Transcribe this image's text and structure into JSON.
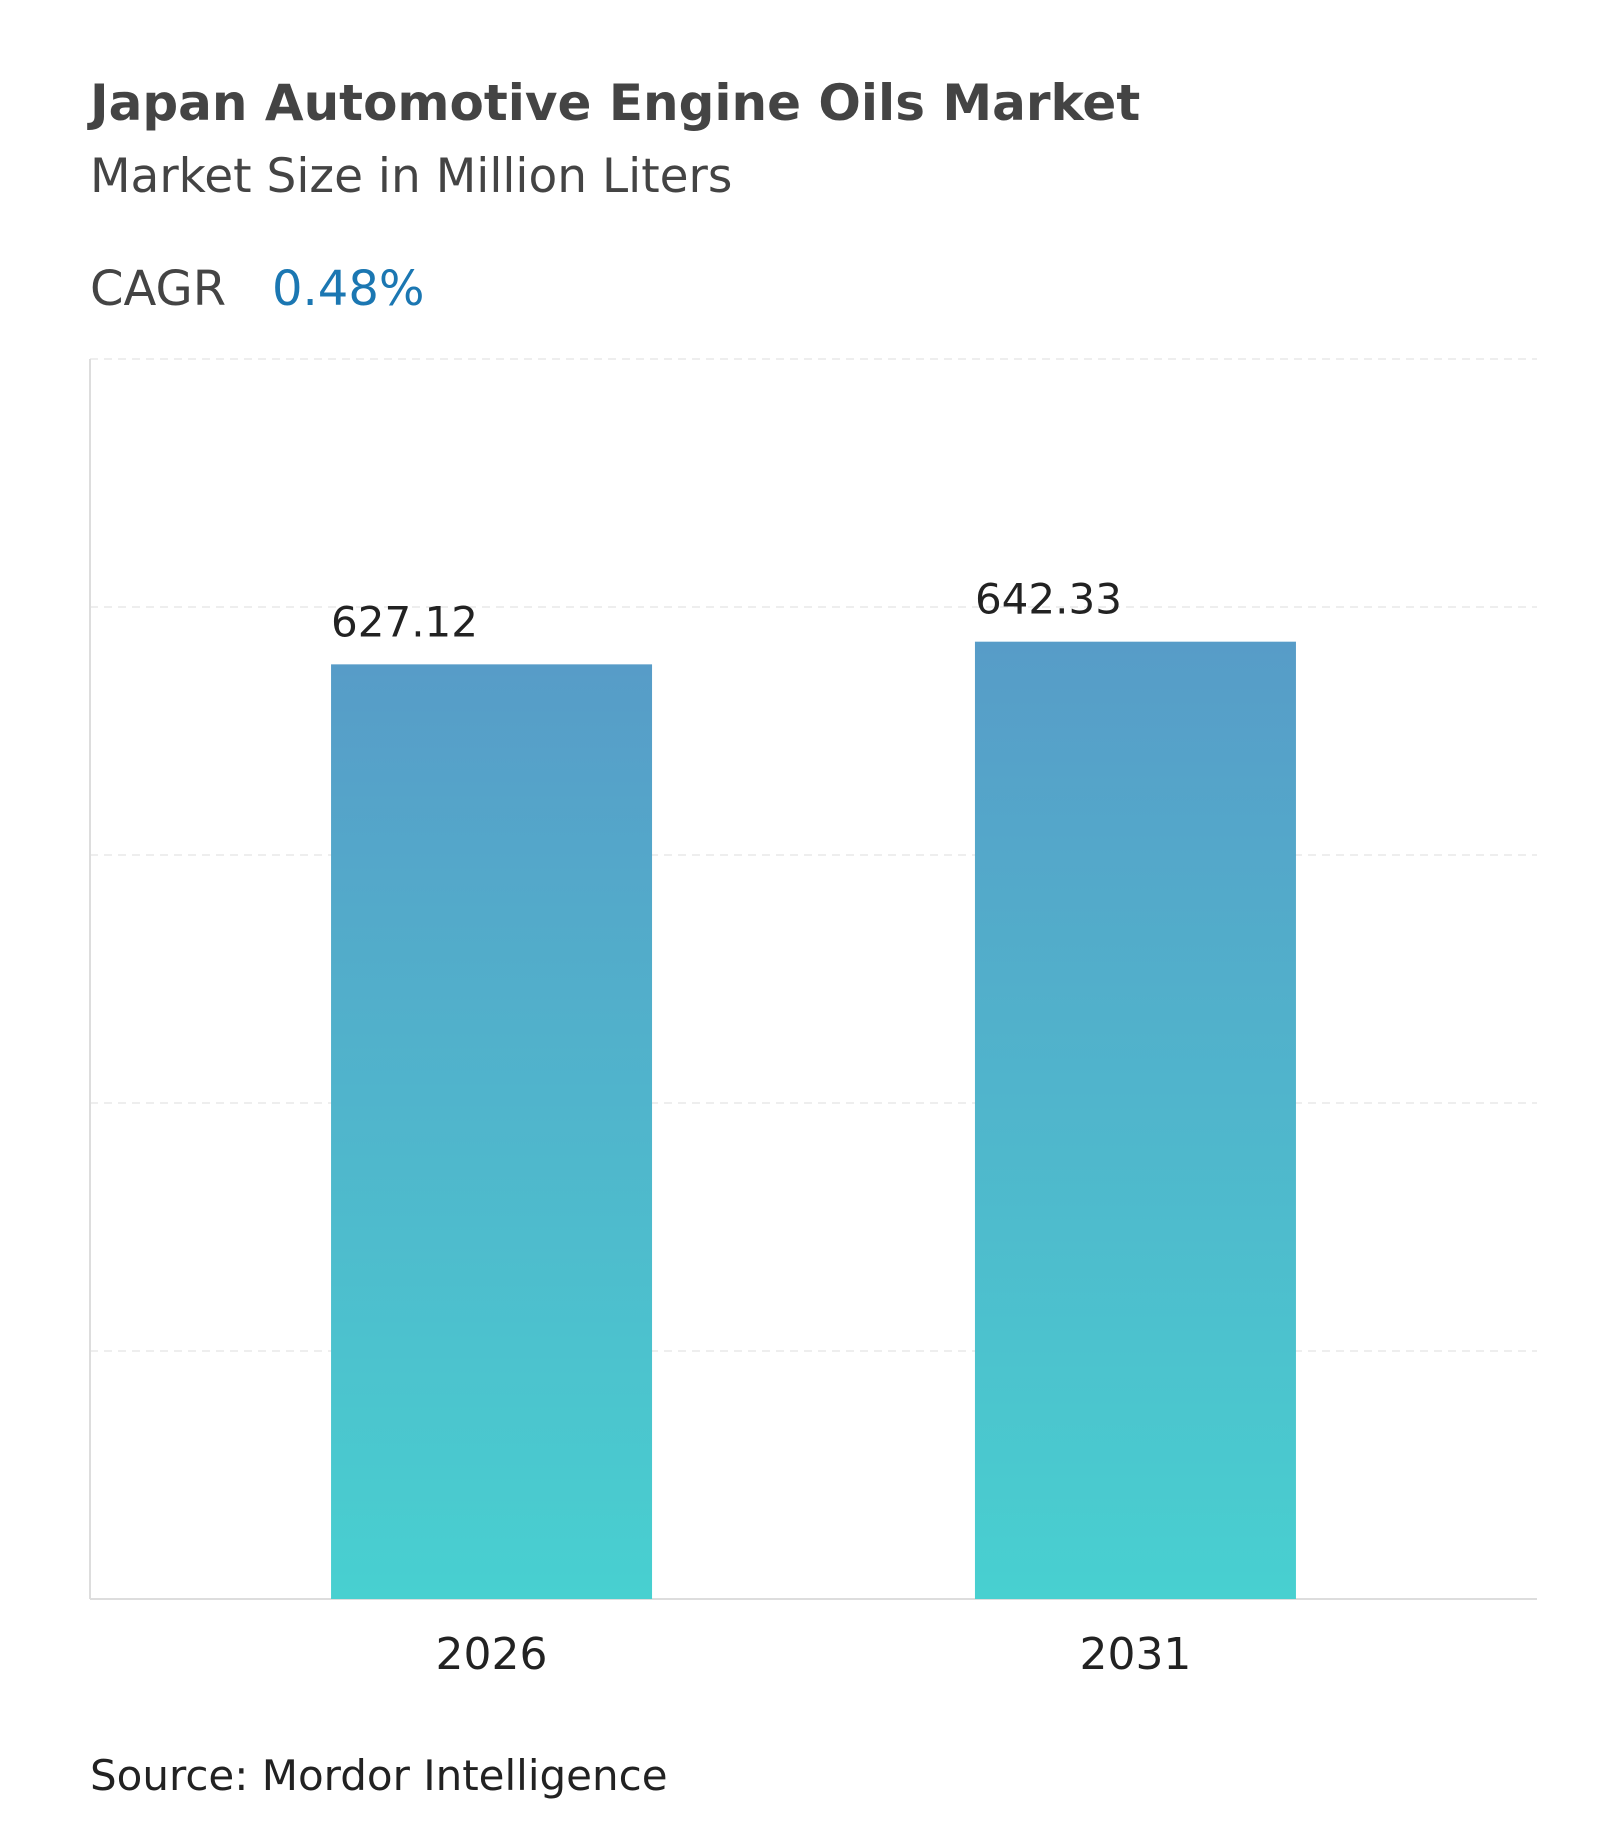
{
  "chart_data": {
    "type": "bar",
    "title": "Japan Automotive Engine Oils Market",
    "subtitle": "Market Size in Million Liters",
    "cagr_label": "CAGR",
    "cagr_value": "0.48%",
    "categories": [
      "2026",
      "2031"
    ],
    "values": [
      627.12,
      642.33
    ],
    "gradient": [
      "#579cc8",
      "#48d0d0"
    ],
    "ylim": [
      0,
      832
    ],
    "yticks": [
      0,
      166.4,
      332.8,
      499.2,
      665.6,
      832
    ],
    "grid": true,
    "source": "Source: Mordor Intelligence"
  }
}
